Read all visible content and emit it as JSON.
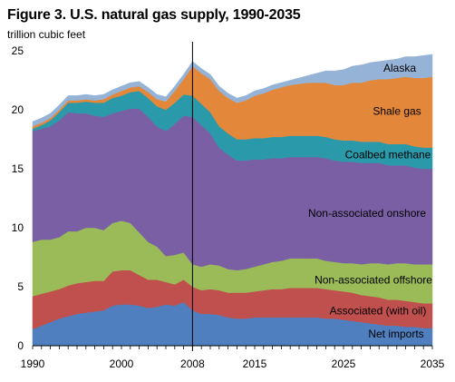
{
  "chart_data": {
    "type": "area",
    "stacked": true,
    "title": "Figure 3. U.S. natural gas supply, 1990-2035",
    "ylabel": "trillion cubic feet",
    "xlabel": "",
    "xlim": [
      1990,
      2035
    ],
    "ylim": [
      0,
      25
    ],
    "x_ticks": [
      1990,
      2000,
      2008,
      2015,
      2025,
      2035
    ],
    "y_ticks": [
      0,
      5,
      10,
      15,
      20,
      25
    ],
    "grid": false,
    "legend": "labels placed directly on areas",
    "vertical_marker": 2008,
    "x": [
      1990,
      1991,
      1992,
      1993,
      1994,
      1995,
      1996,
      1997,
      1998,
      1999,
      2000,
      2001,
      2002,
      2003,
      2004,
      2005,
      2006,
      2007,
      2008,
      2009,
      2010,
      2011,
      2012,
      2013,
      2014,
      2015,
      2016,
      2017,
      2018,
      2019,
      2020,
      2021,
      2022,
      2023,
      2024,
      2025,
      2026,
      2027,
      2028,
      2029,
      2030,
      2031,
      2032,
      2033,
      2034,
      2035
    ],
    "series": [
      {
        "name": "Net imports",
        "color": "#4f7fbf",
        "values": [
          1.4,
          1.7,
          2.0,
          2.3,
          2.5,
          2.7,
          2.8,
          2.9,
          3.0,
          3.4,
          3.5,
          3.5,
          3.4,
          3.2,
          3.3,
          3.5,
          3.4,
          3.7,
          3.0,
          2.7,
          2.7,
          2.6,
          2.4,
          2.3,
          2.3,
          2.4,
          2.4,
          2.4,
          2.4,
          2.4,
          2.4,
          2.4,
          2.4,
          2.3,
          2.3,
          2.2,
          2.1,
          2.0,
          1.9,
          1.8,
          1.7,
          1.7,
          1.6,
          1.6,
          1.5,
          1.5
        ]
      },
      {
        "name": "Associated (with oil)",
        "color": "#c0504d",
        "values": [
          2.8,
          2.7,
          2.6,
          2.5,
          2.6,
          2.6,
          2.6,
          2.6,
          2.5,
          2.9,
          2.9,
          2.9,
          2.6,
          2.4,
          2.3,
          1.9,
          1.8,
          1.9,
          2.0,
          2.0,
          2.1,
          2.1,
          2.1,
          2.2,
          2.2,
          2.2,
          2.3,
          2.4,
          2.4,
          2.5,
          2.5,
          2.5,
          2.5,
          2.5,
          2.4,
          2.4,
          2.4,
          2.3,
          2.3,
          2.3,
          2.2,
          2.2,
          2.2,
          2.1,
          2.1,
          2.1
        ]
      },
      {
        "name": "Non-associated offshore",
        "color": "#9bbb59",
        "values": [
          4.6,
          4.6,
          4.4,
          4.4,
          4.6,
          4.4,
          4.6,
          4.5,
          4.3,
          4.1,
          4.2,
          4.0,
          3.6,
          3.2,
          2.8,
          2.2,
          2.5,
          2.3,
          1.9,
          2.0,
          2.1,
          2.1,
          2.0,
          1.9,
          2.0,
          2.1,
          2.2,
          2.3,
          2.4,
          2.5,
          2.5,
          2.5,
          2.5,
          2.4,
          2.4,
          2.4,
          2.5,
          2.6,
          2.8,
          2.9,
          3.0,
          3.1,
          3.2,
          3.2,
          3.3,
          3.3
        ]
      },
      {
        "name": "Non-associated onshore",
        "color": "#7b5fa5",
        "values": [
          9.4,
          9.4,
          9.6,
          9.9,
          10.1,
          10.0,
          9.7,
          9.5,
          9.6,
          9.3,
          9.3,
          9.7,
          10.5,
          10.6,
          10.2,
          10.6,
          11.1,
          11.6,
          12.5,
          12.0,
          11.1,
          10.0,
          9.7,
          9.3,
          9.2,
          9.1,
          8.9,
          8.8,
          8.7,
          8.6,
          8.6,
          8.6,
          8.6,
          8.7,
          8.6,
          8.6,
          8.6,
          8.6,
          8.5,
          8.5,
          8.4,
          8.3,
          8.3,
          8.2,
          8.1,
          8.1
        ]
      },
      {
        "name": "Coalbed methane",
        "color": "#2a9aaa",
        "values": [
          0.2,
          0.3,
          0.5,
          0.7,
          0.8,
          0.9,
          1.0,
          1.1,
          1.2,
          1.3,
          1.3,
          1.4,
          1.5,
          1.6,
          1.7,
          1.8,
          1.8,
          1.8,
          1.8,
          1.8,
          1.8,
          1.8,
          1.8,
          1.8,
          1.8,
          1.8,
          1.8,
          1.8,
          1.8,
          1.8,
          1.8,
          1.8,
          1.8,
          1.8,
          1.8,
          1.8,
          1.8,
          1.8,
          1.8,
          1.8,
          1.8,
          1.8,
          1.8,
          1.8,
          1.8,
          1.8
        ]
      },
      {
        "name": "Shale gas",
        "color": "#e3873a",
        "values": [
          0.2,
          0.2,
          0.2,
          0.2,
          0.2,
          0.2,
          0.2,
          0.2,
          0.3,
          0.3,
          0.4,
          0.4,
          0.4,
          0.5,
          0.6,
          0.7,
          1.0,
          1.3,
          2.5,
          2.6,
          2.8,
          3.0,
          3.0,
          3.1,
          3.3,
          3.6,
          3.8,
          4.0,
          4.2,
          4.3,
          4.4,
          4.5,
          4.5,
          4.6,
          4.6,
          4.7,
          4.9,
          5.0,
          5.2,
          5.3,
          5.5,
          5.6,
          5.7,
          5.8,
          5.9,
          6.0
        ]
      },
      {
        "name": "Alaska",
        "color": "#95b3d7",
        "values": [
          0.4,
          0.4,
          0.4,
          0.4,
          0.4,
          0.4,
          0.4,
          0.4,
          0.4,
          0.4,
          0.4,
          0.4,
          0.4,
          0.4,
          0.4,
          0.4,
          0.4,
          0.4,
          0.4,
          0.4,
          0.4,
          0.4,
          0.4,
          0.4,
          0.4,
          0.4,
          0.4,
          0.4,
          0.4,
          0.4,
          0.5,
          0.6,
          0.8,
          1.0,
          1.2,
          1.3,
          1.4,
          1.5,
          1.5,
          1.5,
          1.6,
          1.6,
          1.7,
          1.8,
          1.9,
          1.9
        ]
      }
    ]
  }
}
